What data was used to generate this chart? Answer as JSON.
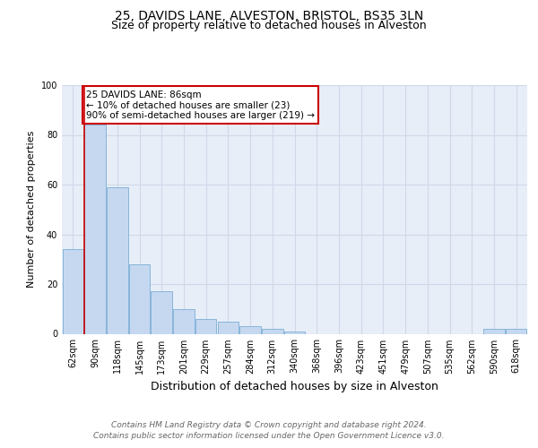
{
  "title1": "25, DAVIDS LANE, ALVESTON, BRISTOL, BS35 3LN",
  "title2": "Size of property relative to detached houses in Alveston",
  "xlabel": "Distribution of detached houses by size in Alveston",
  "ylabel": "Number of detached properties",
  "categories": [
    "62sqm",
    "90sqm",
    "118sqm",
    "145sqm",
    "173sqm",
    "201sqm",
    "229sqm",
    "257sqm",
    "284sqm",
    "312sqm",
    "340sqm",
    "368sqm",
    "396sqm",
    "423sqm",
    "451sqm",
    "479sqm",
    "507sqm",
    "535sqm",
    "562sqm",
    "590sqm",
    "618sqm"
  ],
  "values": [
    34,
    84,
    59,
    28,
    17,
    10,
    6,
    5,
    3,
    2,
    1,
    0,
    0,
    0,
    0,
    0,
    0,
    0,
    0,
    2,
    2
  ],
  "bar_color": "#c5d8f0",
  "bar_edge_color": "#7aaed6",
  "highlight_color": "#cc0000",
  "annotation_text": "25 DAVIDS LANE: 86sqm\n← 10% of detached houses are smaller (23)\n90% of semi-detached houses are larger (219) →",
  "annotation_box_edge_color": "#cc0000",
  "ylim": [
    0,
    100
  ],
  "yticks": [
    0,
    20,
    40,
    60,
    80,
    100
  ],
  "grid_color": "#d0d8e8",
  "background_color": "#e8eef8",
  "footer_text": "Contains HM Land Registry data © Crown copyright and database right 2024.\nContains public sector information licensed under the Open Government Licence v3.0.",
  "title1_fontsize": 10,
  "title2_fontsize": 9,
  "xlabel_fontsize": 9,
  "ylabel_fontsize": 8,
  "tick_fontsize": 7,
  "footer_fontsize": 6.5,
  "annot_fontsize": 7.5
}
